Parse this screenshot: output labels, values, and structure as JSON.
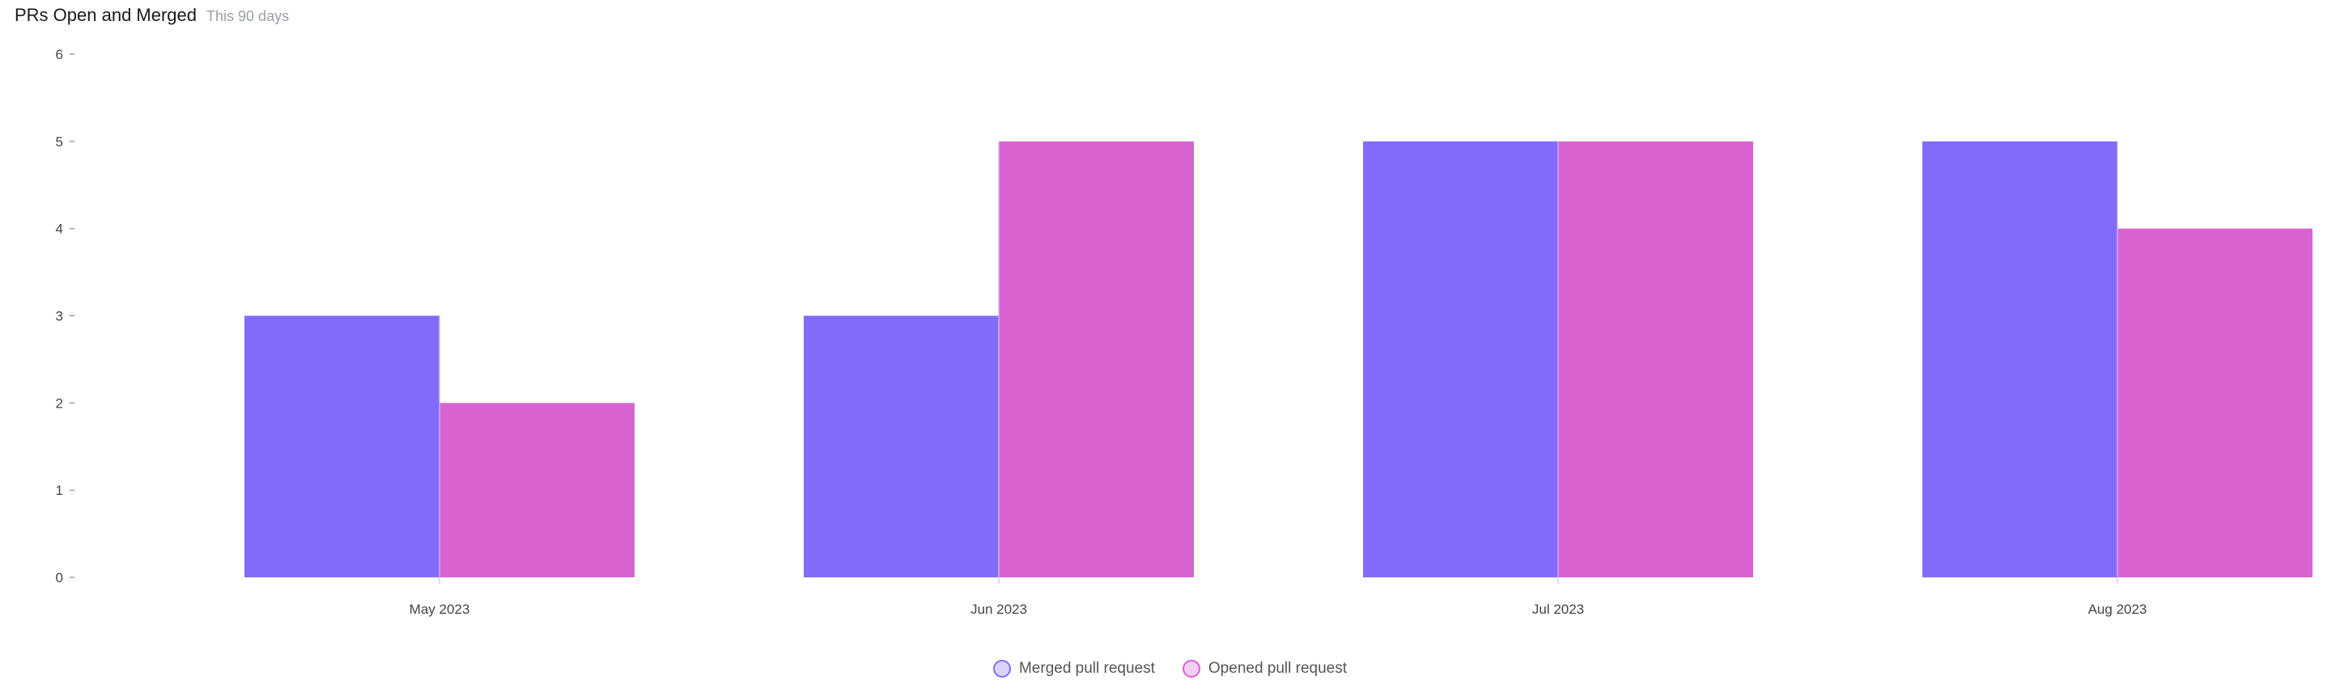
{
  "header": {
    "title": "PRs Open and Merged",
    "subtitle": "This 90 days"
  },
  "colors": {
    "merged": "#836bf9",
    "opened": "#d763d1"
  },
  "chart_data": {
    "type": "bar",
    "title": "PRs Open and Merged",
    "subtitle": "This 90 days",
    "categories": [
      "May 2023",
      "Jun 2023",
      "Jul 2023",
      "Aug 2023"
    ],
    "series": [
      {
        "name": "Merged pull request",
        "values": [
          3,
          3,
          5,
          5
        ],
        "color": "#836bf9"
      },
      {
        "name": "Opened pull request",
        "values": [
          2,
          5,
          5,
          4
        ],
        "color": "#d763d1"
      }
    ],
    "ylim": [
      0,
      6
    ],
    "yticks": [
      0,
      1,
      2,
      3,
      4,
      5,
      6
    ],
    "grid": false,
    "legend": "bottom-center"
  }
}
